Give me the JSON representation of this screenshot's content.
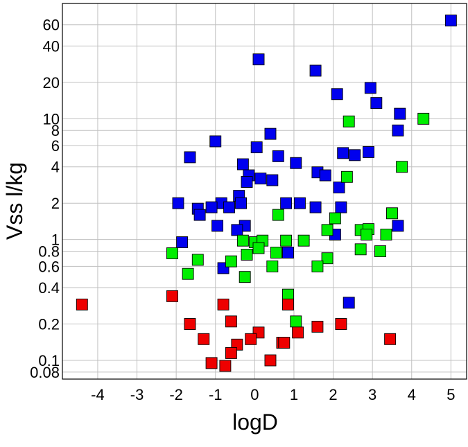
{
  "chart_data": {
    "type": "scatter",
    "xlabel": "logD",
    "ylabel": "Vss l/kg",
    "xlim": [
      -4.9,
      5.4
    ],
    "ylim": [
      0.07,
      90
    ],
    "y_scale": "log",
    "grid": true,
    "x_ticks": [
      -4,
      -3,
      -2,
      -1,
      0,
      1,
      2,
      3,
      4,
      5
    ],
    "y_ticks": [
      0.08,
      0.1,
      0.2,
      0.4,
      0.6,
      0.8,
      1,
      2,
      4,
      6,
      8,
      10,
      20,
      40,
      60
    ],
    "series": [
      {
        "color": "#0000ee",
        "points": [
          [
            5.0,
            65
          ],
          [
            0.1,
            31
          ],
          [
            1.55,
            25
          ],
          [
            2.95,
            18
          ],
          [
            2.1,
            16
          ],
          [
            3.1,
            13.5
          ],
          [
            3.7,
            11
          ],
          [
            3.65,
            8
          ],
          [
            0.4,
            7.5
          ],
          [
            -1.0,
            6.5
          ],
          [
            0.05,
            5.8
          ],
          [
            2.25,
            5.2
          ],
          [
            2.9,
            5.3
          ],
          [
            2.55,
            5.0
          ],
          [
            -1.65,
            4.8
          ],
          [
            0.6,
            4.9
          ],
          [
            1.05,
            4.3
          ],
          [
            -0.3,
            4.2
          ],
          [
            1.6,
            3.6
          ],
          [
            -0.15,
            3.4
          ],
          [
            0.15,
            3.2
          ],
          [
            0.45,
            3.1
          ],
          [
            -0.2,
            3.0
          ],
          [
            1.8,
            3.4
          ],
          [
            2.15,
            2.7
          ],
          [
            -0.4,
            2.3
          ],
          [
            -1.95,
            2.0
          ],
          [
            -0.85,
            2.0
          ],
          [
            -0.35,
            2.0
          ],
          [
            0.8,
            2.0
          ],
          [
            1.15,
            2.0
          ],
          [
            -1.45,
            1.8
          ],
          [
            -1.1,
            1.85
          ],
          [
            -0.65,
            1.85
          ],
          [
            1.55,
            1.85
          ],
          [
            2.2,
            1.85
          ],
          [
            -1.4,
            1.6
          ],
          [
            -0.95,
            1.3
          ],
          [
            -0.25,
            1.3
          ],
          [
            -0.45,
            1.2
          ],
          [
            3.65,
            1.3
          ],
          [
            2.05,
            1.1
          ],
          [
            -1.85,
            0.95
          ],
          [
            0.85,
            0.78
          ],
          [
            -0.8,
            0.58
          ],
          [
            2.4,
            0.3
          ]
        ]
      },
      {
        "color": "#00ee00",
        "points": [
          [
            4.3,
            10
          ],
          [
            2.4,
            9.5
          ],
          [
            3.75,
            4.0
          ],
          [
            2.35,
            3.3
          ],
          [
            0.6,
            1.6
          ],
          [
            3.5,
            1.65
          ],
          [
            2.05,
            1.5
          ],
          [
            1.85,
            1.2
          ],
          [
            2.7,
            1.2
          ],
          [
            2.9,
            1.22
          ],
          [
            2.85,
            1.1
          ],
          [
            3.35,
            1.1
          ],
          [
            -0.3,
            0.98
          ],
          [
            0.0,
            0.95
          ],
          [
            0.2,
            0.98
          ],
          [
            0.8,
            0.98
          ],
          [
            1.25,
            0.98
          ],
          [
            0.1,
            0.85
          ],
          [
            -0.2,
            0.75
          ],
          [
            0.55,
            0.78
          ],
          [
            2.7,
            0.83
          ],
          [
            3.2,
            0.8
          ],
          [
            -2.1,
            0.77
          ],
          [
            -1.45,
            0.68
          ],
          [
            -0.6,
            0.66
          ],
          [
            1.85,
            0.7
          ],
          [
            0.45,
            0.6
          ],
          [
            1.6,
            0.6
          ],
          [
            -1.7,
            0.52
          ],
          [
            -0.25,
            0.49
          ],
          [
            0.85,
            0.35
          ],
          [
            1.05,
            0.21
          ]
        ]
      },
      {
        "color": "#ee0000",
        "points": [
          [
            -4.4,
            0.29
          ],
          [
            -2.1,
            0.34
          ],
          [
            -0.8,
            0.29
          ],
          [
            0.85,
            0.29
          ],
          [
            -1.65,
            0.2
          ],
          [
            -0.6,
            0.21
          ],
          [
            1.6,
            0.19
          ],
          [
            2.2,
            0.2
          ],
          [
            0.1,
            0.17
          ],
          [
            1.1,
            0.17
          ],
          [
            -1.3,
            0.15
          ],
          [
            -0.1,
            0.15
          ],
          [
            3.45,
            0.15
          ],
          [
            -0.45,
            0.135
          ],
          [
            0.7,
            0.14
          ],
          [
            0.75,
            0.14
          ],
          [
            -0.6,
            0.115
          ],
          [
            -1.1,
            0.095
          ],
          [
            -0.75,
            0.09
          ],
          [
            0.4,
            0.1
          ]
        ]
      }
    ]
  }
}
